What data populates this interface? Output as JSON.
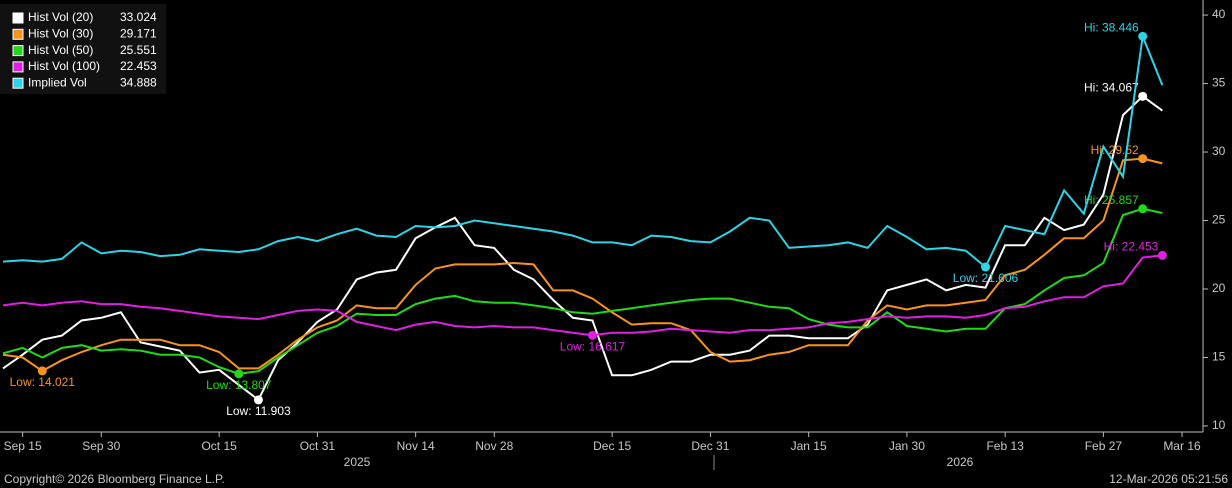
{
  "chart_data": {
    "type": "line",
    "categories": [
      null,
      "Sep 15",
      null,
      null,
      null,
      "Sep 30",
      null,
      null,
      null,
      null,
      null,
      "Oct 15",
      null,
      null,
      null,
      null,
      "Oct 31",
      null,
      null,
      null,
      null,
      "Nov 14",
      null,
      null,
      null,
      "Nov 28",
      null,
      null,
      null,
      null,
      null,
      "Dec 15",
      null,
      null,
      null,
      null,
      "Dec 31",
      null,
      null,
      null,
      null,
      "Jan 15",
      null,
      null,
      null,
      null,
      "Jan 30",
      null,
      null,
      null,
      null,
      "Feb 13",
      null,
      null,
      null,
      null,
      "Feb 27",
      null,
      null,
      null,
      "Mar 16"
    ],
    "x_group_labels": [
      "2025",
      "2026"
    ],
    "ylim": [
      9.56,
      41.1
    ],
    "yticks": [
      10,
      15,
      20,
      25,
      30,
      35,
      40
    ],
    "grid": false,
    "legend": "top-left",
    "series": [
      {
        "name": "Hist Vol (20)",
        "color": "#ffffff",
        "values": [
          14.2,
          15.2,
          16.3,
          16.6,
          17.7,
          17.9,
          18.3,
          16.1,
          15.8,
          15.5,
          13.9,
          14.1,
          13.0,
          11.903,
          14.8,
          16.1,
          17.6,
          18.5,
          20.7,
          21.2,
          21.4,
          23.7,
          24.5,
          25.2,
          23.2,
          23.0,
          21.4,
          20.7,
          19.2,
          17.9,
          17.7,
          13.7,
          13.7,
          14.1,
          14.7,
          14.7,
          15.2,
          15.2,
          15.5,
          16.6,
          16.6,
          16.4,
          16.4,
          16.4,
          17.4,
          19.9,
          20.3,
          20.7,
          19.9,
          20.3,
          20.1,
          23.2,
          23.2,
          25.2,
          24.3,
          24.7,
          26.9,
          32.7,
          34.067,
          33.024,
          null
        ],
        "value_labels": [
          null,
          null,
          null,
          null,
          null,
          null,
          null,
          null,
          null,
          null,
          null,
          null,
          null,
          "Low: 11.903",
          null,
          null,
          null,
          null,
          null,
          null,
          null,
          null,
          null,
          null,
          null,
          null,
          null,
          null,
          null,
          null,
          null,
          null,
          null,
          null,
          null,
          null,
          null,
          null,
          null,
          null,
          null,
          null,
          null,
          null,
          null,
          null,
          null,
          null,
          null,
          null,
          null,
          null,
          null,
          null,
          null,
          null,
          null,
          null,
          "Hi: 34.067",
          null,
          null
        ]
      },
      {
        "name": "Hist Vol (30)",
        "color": "#f7941d",
        "values": [
          15.2,
          15.0,
          14.021,
          14.8,
          15.4,
          15.9,
          16.3,
          16.3,
          16.3,
          15.9,
          15.9,
          15.4,
          14.2,
          14.2,
          15.2,
          16.3,
          17.2,
          17.7,
          18.8,
          18.6,
          18.6,
          20.3,
          21.5,
          21.8,
          21.8,
          21.8,
          21.9,
          21.8,
          19.9,
          19.9,
          19.3,
          18.3,
          17.4,
          17.5,
          17.5,
          17.0,
          15.4,
          14.7,
          14.8,
          15.2,
          15.4,
          15.9,
          15.9,
          15.9,
          17.7,
          18.8,
          18.5,
          18.8,
          18.8,
          19.0,
          19.2,
          21.0,
          21.4,
          22.5,
          23.7,
          23.7,
          25.0,
          29.4,
          29.52,
          29.171,
          null
        ],
        "value_labels": [
          null,
          null,
          "Low: 14.021",
          null,
          null,
          null,
          null,
          null,
          null,
          null,
          null,
          null,
          null,
          null,
          null,
          null,
          null,
          null,
          null,
          null,
          null,
          null,
          null,
          null,
          null,
          null,
          null,
          null,
          null,
          null,
          null,
          null,
          null,
          null,
          null,
          null,
          null,
          null,
          null,
          null,
          null,
          null,
          null,
          null,
          null,
          null,
          null,
          null,
          null,
          null,
          null,
          null,
          null,
          null,
          null,
          null,
          null,
          null,
          "Hi: 29.52",
          null,
          null
        ]
      },
      {
        "name": "Hist Vol (50)",
        "color": "#22d81a",
        "values": [
          15.3,
          15.7,
          15.0,
          15.7,
          15.9,
          15.5,
          15.6,
          15.5,
          15.2,
          15.2,
          15.0,
          14.3,
          13.807,
          14.0,
          15.0,
          15.9,
          16.8,
          17.3,
          18.2,
          18.1,
          18.1,
          18.9,
          19.3,
          19.5,
          19.1,
          19.0,
          19.0,
          18.8,
          18.6,
          18.3,
          18.2,
          18.4,
          18.6,
          18.8,
          19.0,
          19.2,
          19.3,
          19.3,
          19.0,
          18.7,
          18.6,
          17.8,
          17.4,
          17.2,
          17.2,
          18.3,
          17.3,
          17.1,
          16.9,
          17.1,
          17.1,
          18.6,
          18.9,
          19.9,
          20.8,
          21.0,
          21.9,
          25.4,
          25.857,
          25.551,
          null
        ],
        "value_labels": [
          null,
          null,
          null,
          null,
          null,
          null,
          null,
          null,
          null,
          null,
          null,
          null,
          "Low: 13.807",
          null,
          null,
          null,
          null,
          null,
          null,
          null,
          null,
          null,
          null,
          null,
          null,
          null,
          null,
          null,
          null,
          null,
          null,
          null,
          null,
          null,
          null,
          null,
          null,
          null,
          null,
          null,
          null,
          null,
          null,
          null,
          null,
          null,
          null,
          null,
          null,
          null,
          null,
          null,
          null,
          null,
          null,
          null,
          null,
          null,
          "Hi: 25.857",
          null,
          null
        ]
      },
      {
        "name": "Hist Vol (100)",
        "color": "#e020e0",
        "values": [
          18.8,
          19.0,
          18.8,
          19.0,
          19.1,
          18.9,
          18.9,
          18.7,
          18.6,
          18.4,
          18.2,
          18.0,
          17.9,
          17.8,
          18.1,
          18.4,
          18.5,
          18.4,
          17.6,
          17.3,
          17.0,
          17.4,
          17.6,
          17.3,
          17.2,
          17.3,
          17.2,
          17.2,
          17.0,
          16.8,
          16.617,
          16.8,
          16.8,
          16.9,
          17.1,
          17.0,
          16.9,
          16.8,
          17.0,
          17.0,
          17.1,
          17.2,
          17.5,
          17.6,
          17.8,
          18.0,
          17.9,
          18.0,
          18.0,
          17.9,
          18.1,
          18.6,
          18.7,
          19.1,
          19.4,
          19.4,
          20.2,
          20.4,
          22.3,
          22.453,
          null
        ],
        "value_labels": [
          null,
          null,
          null,
          null,
          null,
          null,
          null,
          null,
          null,
          null,
          null,
          null,
          null,
          null,
          null,
          null,
          null,
          null,
          null,
          null,
          null,
          null,
          null,
          null,
          null,
          null,
          null,
          null,
          null,
          null,
          "Low: 16.617",
          null,
          null,
          null,
          null,
          null,
          null,
          null,
          null,
          null,
          null,
          null,
          null,
          null,
          null,
          null,
          null,
          null,
          null,
          null,
          null,
          null,
          null,
          null,
          null,
          null,
          null,
          null,
          null,
          "Hi: 22.453",
          null
        ]
      },
      {
        "name": "Implied Vol",
        "color": "#2ed3e6",
        "values": [
          22.0,
          22.1,
          22.0,
          22.2,
          23.4,
          22.6,
          22.8,
          22.7,
          22.4,
          22.5,
          22.9,
          22.8,
          22.7,
          22.9,
          23.5,
          23.8,
          23.5,
          24.0,
          24.4,
          23.9,
          23.8,
          24.6,
          24.5,
          24.6,
          25.0,
          24.8,
          24.6,
          24.4,
          24.2,
          23.9,
          23.4,
          23.4,
          23.2,
          23.9,
          23.8,
          23.5,
          23.4,
          24.2,
          25.2,
          25.0,
          23.0,
          23.1,
          23.2,
          23.4,
          23.0,
          24.6,
          23.8,
          22.9,
          23.0,
          22.8,
          21.606,
          24.6,
          24.3,
          24.0,
          27.2,
          25.5,
          30.4,
          28.2,
          38.446,
          34.888,
          null
        ],
        "value_labels": [
          null,
          null,
          null,
          null,
          null,
          null,
          null,
          null,
          null,
          null,
          null,
          null,
          null,
          null,
          null,
          null,
          null,
          null,
          null,
          null,
          null,
          null,
          null,
          null,
          null,
          null,
          null,
          null,
          null,
          null,
          null,
          null,
          null,
          null,
          null,
          null,
          null,
          null,
          null,
          null,
          null,
          null,
          null,
          null,
          null,
          null,
          null,
          null,
          null,
          null,
          "Low: 21.606",
          null,
          null,
          null,
          null,
          null,
          null,
          null,
          "Hi: 38.446",
          null,
          null
        ]
      }
    ],
    "source": "Copyright© 2026 Bloomberg Finance L.P.",
    "timestamp": "12-Mar-2026 05:21:56"
  }
}
